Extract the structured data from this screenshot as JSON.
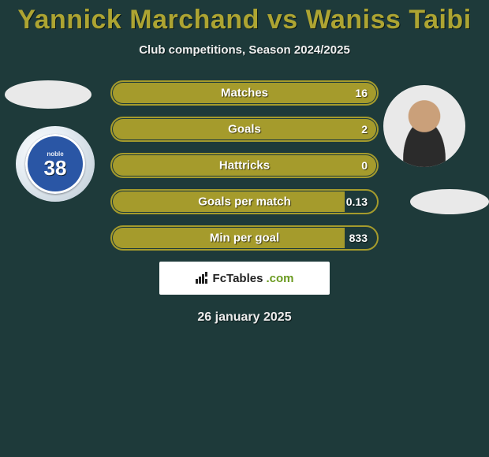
{
  "title_parts": {
    "player1": "Yannick Marchand",
    "vs": "vs",
    "player2": "Waniss Taibi"
  },
  "subtitle": "Club competitions, Season 2024/2025",
  "left_badge": {
    "top_text": "noble",
    "number": "38"
  },
  "bar_style": {
    "fill_color": "#a59b2c",
    "border_color": "#a59b2c",
    "track_bg": "transparent",
    "text_color": "#ffffff"
  },
  "stats": [
    {
      "label": "Matches",
      "value": "16",
      "fill_pct": 100
    },
    {
      "label": "Goals",
      "value": "2",
      "fill_pct": 100
    },
    {
      "label": "Hattricks",
      "value": "0",
      "fill_pct": 100
    },
    {
      "label": "Goals per match",
      "value": "0.13",
      "fill_pct": 88
    },
    {
      "label": "Min per goal",
      "value": "833",
      "fill_pct": 88
    }
  ],
  "brand": {
    "name_main": "FcTables",
    "name_suffix": ".com"
  },
  "date_text": "26 january 2025"
}
